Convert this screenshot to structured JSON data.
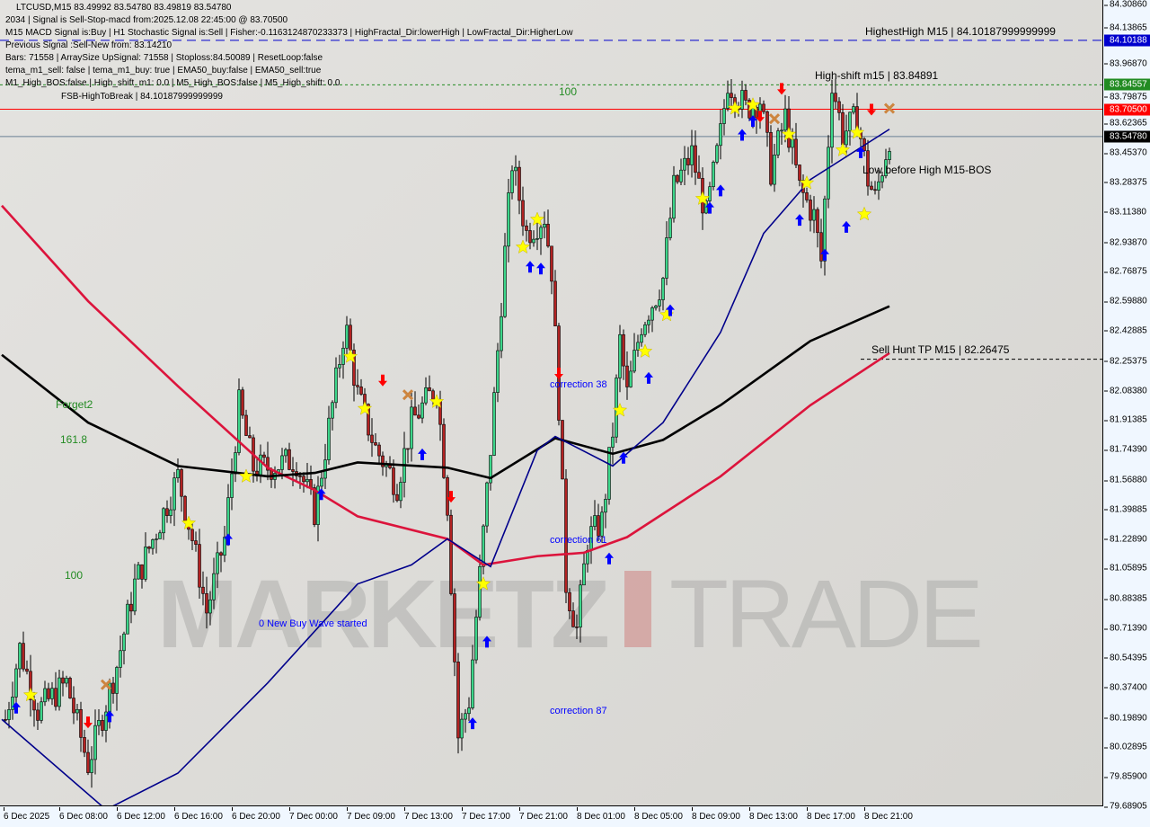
{
  "header": {
    "symbol_line": "LTCUSD,M15  83.49992 83.54780 83.49819 83.54780",
    "lines": [
      "2034 | Signal is Sell-Stop-macd from:2025.12.08 22:45:00 @ 83.70500",
      "M15 MACD Signal is:Buy | H1 Stochastic Signal is:Sell | Fisher:-0.1163124870233373 | HighFractal_Dir:lowerHigh | LowFractal_Dir:HigherLow",
      "Previous Signal :Sell-New from: 83.14210",
      "Bars: 71558 | ArraySize UpSignal: 71558 | Stoploss:84.50089 | ResetLoop:false",
      "tema_m1_sell: false | tema_m1_buy: true | EMA50_buy:false | EMA50_sell:true",
      "M1_High_BOS:false | High_shift_m1: 0.0 | M5_High_BOS:false | M5_High_shift: 0.0"
    ]
  },
  "watermark": {
    "part1": "MARKETZ",
    "part2": "TRADE"
  },
  "chart_data": {
    "type": "candlestick",
    "symbol": "LTCUSD",
    "timeframe": "M15",
    "ylim": [
      79.68905,
      84.3086
    ],
    "y_ticks": [
      "84.30860",
      "84.13865",
      "83.96870",
      "83.79875",
      "83.62365",
      "83.45370",
      "83.28375",
      "83.11380",
      "82.93870",
      "82.76875",
      "82.59880",
      "82.42885",
      "82.25375",
      "82.08380",
      "81.91385",
      "81.74390",
      "81.56880",
      "81.39885",
      "81.22890",
      "81.05895",
      "80.88385",
      "80.71390",
      "80.54395",
      "80.37400",
      "80.19890",
      "80.02895",
      "79.85900",
      "79.68905"
    ],
    "x_ticks": [
      "6 Dec 2025",
      "6 Dec 08:00",
      "6 Dec 12:00",
      "6 Dec 16:00",
      "6 Dec 20:00",
      "7 Dec 00:00",
      "7 Dec 09:00",
      "7 Dec 13:00",
      "7 Dec 17:00",
      "7 Dec 21:00",
      "8 Dec 01:00",
      "8 Dec 05:00",
      "8 Dec 09:00",
      "8 Dec 13:00",
      "8 Dec 17:00",
      "8 Dec 21:00"
    ],
    "price_path": [
      [
        "6 Dec 04:15",
        80.19
      ],
      [
        "6 Dec 05:15",
        80.6
      ],
      [
        "6 Dec 06:30",
        80.24
      ],
      [
        "6 Dec 08:30",
        80.4
      ],
      [
        "6 Dec 10:00",
        79.93
      ],
      [
        "6 Dec 10:45",
        80.14
      ],
      [
        "6 Dec 12:00",
        80.5
      ],
      [
        "6 Dec 13:15",
        80.97
      ],
      [
        "6 Dec 15:00",
        81.33
      ],
      [
        "6 Dec 16:15",
        81.59
      ],
      [
        "6 Dec 17:15",
        81.23
      ],
      [
        "6 Dec 18:15",
        80.81
      ],
      [
        "6 Dec 19:30",
        81.23
      ],
      [
        "6 Dec 20:30",
        82.0
      ],
      [
        "6 Dec 21:30",
        81.64
      ],
      [
        "6 Dec 22:30",
        81.64
      ],
      [
        "7 Dec 01:00",
        81.69
      ],
      [
        "7 Dec 04:00",
        81.38
      ],
      [
        "7 Dec 06:45",
        82.0
      ],
      [
        "7 Dec 08:45",
        82.47
      ],
      [
        "7 Dec 09:45",
        82.06
      ],
      [
        "7 Dec 11:00",
        81.75
      ],
      [
        "7 Dec 12:30",
        81.54
      ],
      [
        "7 Dec 13:30",
        81.9
      ],
      [
        "7 Dec 15:15",
        82.11
      ],
      [
        "7 Dec 16:00",
        81.43
      ],
      [
        "7 Dec 16:45",
        80.09
      ],
      [
        "7 Dec 17:30",
        80.3
      ],
      [
        "7 Dec 18:15",
        81.02
      ],
      [
        "7 Dec 19:00",
        81.75
      ],
      [
        "7 Dec 20:00",
        82.88
      ],
      [
        "7 Dec 20:30",
        83.4
      ],
      [
        "7 Dec 21:30",
        82.99
      ],
      [
        "7 Dec 22:45",
        83.09
      ],
      [
        "7 Dec 23:15",
        82.78
      ],
      [
        "7 Dec 23:45",
        82.0
      ],
      [
        "8 Dec 00:15",
        80.97
      ],
      [
        "8 Dec 01:00",
        80.71
      ],
      [
        "8 Dec 01:45",
        81.23
      ],
      [
        "8 Dec 02:45",
        81.33
      ],
      [
        "8 Dec 03:30",
        81.85
      ],
      [
        "8 Dec 04:00",
        82.37
      ],
      [
        "8 Dec 04:30",
        82.06
      ],
      [
        "8 Dec 05:30",
        82.47
      ],
      [
        "8 Dec 06:30",
        82.63
      ],
      [
        "8 Dec 07:00",
        82.73
      ],
      [
        "8 Dec 07:45",
        83.25
      ],
      [
        "8 Dec 09:00",
        83.45
      ],
      [
        "8 Dec 10:00",
        83.09
      ],
      [
        "8 Dec 11:00",
        83.56
      ],
      [
        "8 Dec 11:30",
        83.87
      ],
      [
        "8 Dec 12:45",
        83.71
      ],
      [
        "8 Dec 13:45",
        83.76
      ],
      [
        "8 Dec 14:30",
        83.35
      ],
      [
        "8 Dec 15:30",
        83.66
      ],
      [
        "8 Dec 16:30",
        83.25
      ],
      [
        "8 Dec 17:30",
        83.09
      ],
      [
        "8 Dec 18:00",
        82.83
      ],
      [
        "8 Dec 18:45",
        83.87
      ],
      [
        "8 Dec 19:30",
        83.56
      ],
      [
        "8 Dec 20:30",
        83.66
      ],
      [
        "8 Dec 21:15",
        83.3
      ],
      [
        "8 Dec 21:45",
        83.19
      ],
      [
        "8 Dec 22:45",
        83.5478
      ]
    ],
    "moving_averages": [
      {
        "color": "#dc143c",
        "points": [
          [
            "6 Dec 04:00",
            83.15
          ],
          [
            "6 Dec 10:00",
            82.6
          ],
          [
            "6 Dec 16:15",
            82.11
          ],
          [
            "6 Dec 22:30",
            81.64
          ],
          [
            "7 Dec 04:00",
            81.51
          ],
          [
            "7 Dec 09:45",
            81.36
          ],
          [
            "7 Dec 16:00",
            81.23
          ],
          [
            "7 Dec 18:30",
            81.08
          ],
          [
            "7 Dec 22:15",
            81.13
          ],
          [
            "8 Dec 01:30",
            81.15
          ],
          [
            "8 Dec 04:30",
            81.24
          ],
          [
            "8 Dec 11:00",
            81.59
          ],
          [
            "8 Dec 17:15",
            82.0
          ],
          [
            "8 Dec 22:45",
            82.3
          ]
        ]
      },
      {
        "color": "#000000",
        "points": [
          [
            "6 Dec 04:00",
            82.29
          ],
          [
            "6 Dec 10:00",
            81.9
          ],
          [
            "6 Dec 16:15",
            81.65
          ],
          [
            "6 Dec 22:30",
            81.59
          ],
          [
            "7 Dec 04:00",
            81.61
          ],
          [
            "7 Dec 09:45",
            81.67
          ],
          [
            "7 Dec 16:00",
            81.64
          ],
          [
            "7 Dec 19:00",
            81.58
          ],
          [
            "7 Dec 23:30",
            81.81
          ],
          [
            "8 Dec 03:30",
            81.72
          ],
          [
            "8 Dec 07:00",
            81.8
          ],
          [
            "8 Dec 11:00",
            82.0
          ],
          [
            "8 Dec 17:15",
            82.37
          ],
          [
            "8 Dec 22:45",
            82.57
          ]
        ]
      },
      {
        "color": "#00008b",
        "points": [
          [
            "6 Dec 04:00",
            80.19
          ],
          [
            "6 Dec 11:15",
            79.67
          ],
          [
            "6 Dec 16:15",
            79.88
          ],
          [
            "6 Dec 22:30",
            80.4
          ],
          [
            "7 Dec 09:45",
            80.97
          ],
          [
            "7 Dec 13:30",
            81.08
          ],
          [
            "7 Dec 16:00",
            81.23
          ],
          [
            "7 Dec 19:00",
            81.07
          ],
          [
            "7 Dec 22:15",
            81.74
          ],
          [
            "7 Dec 23:30",
            81.82
          ],
          [
            "8 Dec 03:30",
            81.65
          ],
          [
            "8 Dec 07:00",
            81.9
          ],
          [
            "8 Dec 11:00",
            82.42
          ],
          [
            "8 Dec 14:00",
            82.99
          ],
          [
            "8 Dec 17:15",
            83.3
          ],
          [
            "8 Dec 22:45",
            83.59
          ]
        ]
      }
    ],
    "levels": [
      {
        "price": 84.10188,
        "label": "84.10188",
        "color": "#0000cd",
        "style": "dashed"
      },
      {
        "price": 83.84557,
        "label": "83.84557",
        "color": "#228b22",
        "style": "dotted"
      },
      {
        "price": 83.705,
        "label": "83.70500",
        "color": "#ff0000",
        "style": "solid"
      },
      {
        "price": 83.5478,
        "label": "83.54780",
        "color": "#000000",
        "style": "solid"
      }
    ],
    "stars": [
      [
        "6 Dec 06:00",
        80.33
      ],
      [
        "6 Dec 17:00",
        81.32
      ],
      [
        "6 Dec 21:00",
        81.59
      ],
      [
        "7 Dec 09:15",
        82.28
      ],
      [
        "7 Dec 10:15",
        81.98
      ],
      [
        "7 Dec 15:15",
        82.02
      ],
      [
        "7 Dec 18:30",
        80.97
      ],
      [
        "7 Dec 21:15",
        82.91
      ],
      [
        "7 Dec 22:15",
        83.07
      ],
      [
        "8 Dec 04:00",
        81.97
      ],
      [
        "8 Dec 05:45",
        82.31
      ],
      [
        "8 Dec 07:15",
        82.52
      ],
      [
        "8 Dec 09:45",
        83.19
      ],
      [
        "8 Dec 12:00",
        83.71
      ],
      [
        "8 Dec 13:15",
        83.73
      ],
      [
        "8 Dec 15:45",
        83.56
      ],
      [
        "8 Dec 17:00",
        83.28
      ],
      [
        "8 Dec 19:30",
        83.47
      ],
      [
        "8 Dec 20:30",
        83.57
      ],
      [
        "8 Dec 21:00",
        83.1
      ]
    ],
    "buy_arrows": [
      [
        "6 Dec 05:00",
        80.26
      ],
      [
        "6 Dec 11:30",
        80.21
      ],
      [
        "6 Dec 19:45",
        81.23
      ],
      [
        "7 Dec 05:00",
        81.49
      ],
      [
        "7 Dec 14:15",
        81.72
      ],
      [
        "7 Dec 17:45",
        80.17
      ],
      [
        "7 Dec 18:45",
        80.64
      ],
      [
        "7 Dec 21:45",
        82.8
      ],
      [
        "7 Dec 22:30",
        82.79
      ],
      [
        "8 Dec 03:15",
        81.12
      ],
      [
        "8 Dec 04:15",
        81.7
      ],
      [
        "8 Dec 06:00",
        82.16
      ],
      [
        "8 Dec 07:30",
        82.55
      ],
      [
        "8 Dec 10:15",
        83.14
      ],
      [
        "8 Dec 11:00",
        83.24
      ],
      [
        "8 Dec 12:30",
        83.56
      ],
      [
        "8 Dec 13:15",
        83.64
      ],
      [
        "8 Dec 16:30",
        83.07
      ],
      [
        "8 Dec 18:15",
        82.87
      ],
      [
        "8 Dec 19:45",
        83.03
      ],
      [
        "8 Dec 20:45",
        83.46
      ]
    ],
    "sell_arrows": [
      [
        "6 Dec 10:00",
        80.17
      ],
      [
        "7 Dec 11:30",
        82.14
      ],
      [
        "7 Dec 16:15",
        81.47
      ],
      [
        "7 Dec 23:45",
        82.18
      ],
      [
        "8 Dec 13:45",
        83.66
      ],
      [
        "8 Dec 15:15",
        83.82
      ],
      [
        "8 Dec 21:30",
        83.7
      ]
    ],
    "x_marks": [
      [
        "6 Dec 11:15",
        80.39
      ],
      [
        "7 Dec 13:15",
        82.06
      ],
      [
        "8 Dec 14:45",
        83.65
      ],
      [
        "8 Dec 22:45",
        83.71
      ]
    ],
    "annotations": [
      {
        "text": "FSB-HighToBreak | 84.10187999999999",
        "color": "#000000"
      },
      {
        "text": "HighestHigh   M15 | 84.10187999999999",
        "color": "#000000"
      },
      {
        "text": "High-shift m15 | 83.84891",
        "color": "#000000"
      },
      {
        "text": "Low before High   M15-BOS",
        "color": "#000000"
      },
      {
        "text": "Sell Hunt TP M15 | 82.26475",
        "color": "#000000"
      },
      {
        "text": "correction 38",
        "color": "#0000ff"
      },
      {
        "text": "correction 61",
        "color": "#0000ff"
      },
      {
        "text": "correction 87",
        "color": "#0000ff"
      },
      {
        "text": "0 New Buy Wave started",
        "color": "#0000ff"
      },
      {
        "text": "Forget2",
        "color": "#228b22"
      },
      {
        "text": "161.8",
        "color": "#228b22"
      },
      {
        "text": "100",
        "color": "#228b22"
      },
      {
        "text": "100",
        "color": "#228b22"
      }
    ]
  }
}
